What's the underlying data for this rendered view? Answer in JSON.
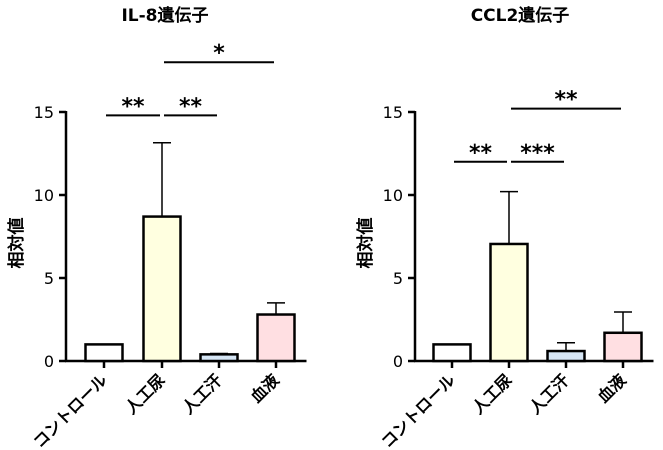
{
  "chart_data": [
    {
      "type": "bar",
      "title": "IL-8遺伝子",
      "ylabel": "相対値",
      "xlabel": "",
      "categories": [
        "コントロール",
        "人工尿",
        "人工汗",
        "血液"
      ],
      "values": [
        1.0,
        8.7,
        0.4,
        2.8
      ],
      "errors": [
        0.0,
        4.45,
        0.05,
        0.7
      ],
      "ylim": [
        0,
        15
      ],
      "yticks": [
        0,
        5,
        10,
        15
      ],
      "bar_colors": [
        "#ffffff",
        "#ffffe0",
        "#d6e6f5",
        "#ffdfe2"
      ],
      "significance": [
        {
          "from": 0,
          "to": 1,
          "y": 14.8,
          "label": "**"
        },
        {
          "from": 1,
          "to": 2,
          "y": 14.8,
          "label": "**"
        },
        {
          "from": 1,
          "to": 3,
          "y": 18.0,
          "label": "*"
        }
      ]
    },
    {
      "type": "bar",
      "title": "CCL2遺伝子",
      "ylabel": "相対値",
      "xlabel": "",
      "categories": [
        "コントロール",
        "人工尿",
        "人工汗",
        "血液"
      ],
      "values": [
        1.0,
        7.05,
        0.6,
        1.7
      ],
      "errors": [
        0.0,
        3.15,
        0.5,
        1.25
      ],
      "ylim": [
        0,
        15
      ],
      "yticks": [
        0,
        5,
        10,
        15
      ],
      "bar_colors": [
        "#ffffff",
        "#ffffe0",
        "#d6e6f5",
        "#ffdfe2"
      ],
      "significance": [
        {
          "from": 0,
          "to": 1,
          "y": 12.0,
          "label": "**"
        },
        {
          "from": 1,
          "to": 2,
          "y": 12.0,
          "label": "***"
        },
        {
          "from": 1,
          "to": 3,
          "y": 15.2,
          "label": "**"
        }
      ]
    }
  ]
}
